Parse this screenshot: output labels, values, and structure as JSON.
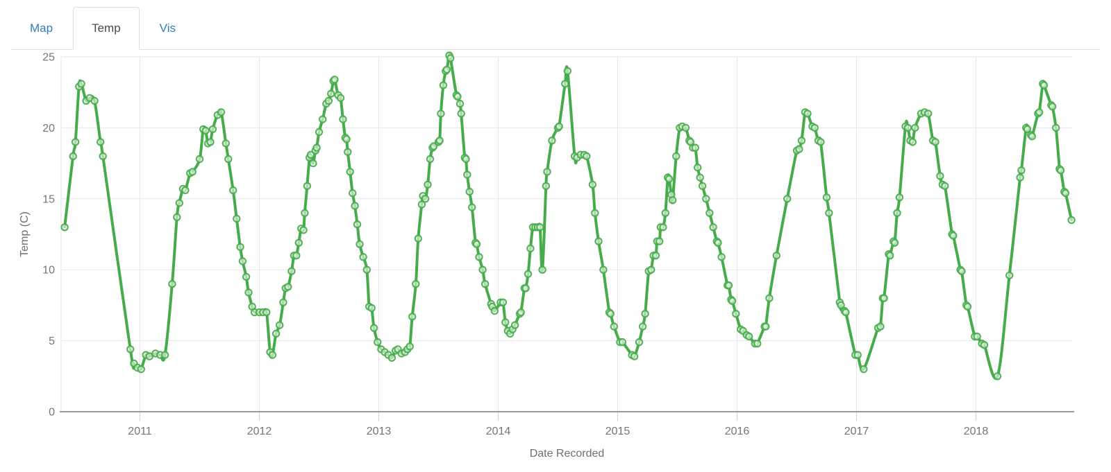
{
  "tabs": {
    "items": [
      {
        "label": "Map",
        "active": false
      },
      {
        "label": "Temp",
        "active": true
      },
      {
        "label": "Vis",
        "active": false
      }
    ]
  },
  "colors": {
    "line": "#45ac49",
    "marker_fill": "rgba(255,255,255,0.55)",
    "link": "#337ab7",
    "active_tab_text": "#4a4a4a",
    "tab_border": "#dddddd",
    "grid": "#e6e6e6",
    "axis": "#999999",
    "tick": "#cfcfcf",
    "tick_label": "#757575",
    "axis_title": "#6e6e6e"
  },
  "chart_data": {
    "type": "line",
    "title": "",
    "xlabel": "Date Recorded",
    "ylabel": "Temp (C)",
    "x_ticks": [
      2011,
      2012,
      2013,
      2014,
      2015,
      2016,
      2017,
      2018
    ],
    "y_ticks": [
      0,
      5,
      10,
      15,
      20,
      25
    ],
    "x_range": [
      2010.34,
      2018.81
    ],
    "ylim": [
      0,
      25
    ],
    "grid": true,
    "legend": false,
    "marker": "hollow-circle",
    "series": [
      {
        "name": "Temp",
        "color": "#45ac49",
        "points": [
          [
            2010.37,
            13
          ],
          [
            2010.44,
            18
          ],
          [
            2010.46,
            19
          ],
          [
            2010.49,
            22.9
          ],
          [
            2010.51,
            23.1
          ],
          [
            2010.55,
            21.9
          ],
          [
            2010.58,
            22.1
          ],
          [
            2010.62,
            21.9
          ],
          [
            2010.67,
            19
          ],
          [
            2010.69,
            18
          ],
          [
            2010.92,
            4.4
          ],
          [
            2010.95,
            3.4
          ],
          [
            2010.98,
            3.1
          ],
          [
            2011.01,
            3
          ],
          [
            2011.05,
            4
          ],
          [
            2011.08,
            3.9
          ],
          [
            2011.13,
            4.1
          ],
          [
            2011.17,
            4
          ],
          [
            2011.21,
            4
          ],
          [
            2011.27,
            9
          ],
          [
            2011.31,
            13.7
          ],
          [
            2011.33,
            14.7
          ],
          [
            2011.36,
            15.7
          ],
          [
            2011.38,
            15.6
          ],
          [
            2011.42,
            16.8
          ],
          [
            2011.44,
            16.9
          ],
          [
            2011.5,
            17.8
          ],
          [
            2011.53,
            19.9
          ],
          [
            2011.55,
            19.8
          ],
          [
            2011.57,
            18.9
          ],
          [
            2011.59,
            19
          ],
          [
            2011.61,
            19.9
          ],
          [
            2011.65,
            20.9
          ],
          [
            2011.68,
            21.1
          ],
          [
            2011.72,
            18.9
          ],
          [
            2011.74,
            17.8
          ],
          [
            2011.78,
            15.6
          ],
          [
            2011.81,
            13.6
          ],
          [
            2011.84,
            11.6
          ],
          [
            2011.86,
            10.6
          ],
          [
            2011.89,
            9.5
          ],
          [
            2011.91,
            8.4
          ],
          [
            2011.94,
            7.4
          ],
          [
            2011.96,
            7
          ],
          [
            2012,
            7
          ],
          [
            2012.03,
            7
          ],
          [
            2012.06,
            7
          ],
          [
            2012.09,
            4.2
          ],
          [
            2012.11,
            4
          ],
          [
            2012.14,
            5.5
          ],
          [
            2012.17,
            6.1
          ],
          [
            2012.2,
            7.7
          ],
          [
            2012.22,
            8.7
          ],
          [
            2012.24,
            8.8
          ],
          [
            2012.27,
            9.9
          ],
          [
            2012.29,
            11
          ],
          [
            2012.31,
            11
          ],
          [
            2012.33,
            11.9
          ],
          [
            2012.35,
            12.9
          ],
          [
            2012.37,
            12.8
          ],
          [
            2012.38,
            14
          ],
          [
            2012.4,
            15.9
          ],
          [
            2012.42,
            17.9
          ],
          [
            2012.43,
            18.1
          ],
          [
            2012.45,
            17.5
          ],
          [
            2012.47,
            18.4
          ],
          [
            2012.48,
            18.6
          ],
          [
            2012.5,
            19.7
          ],
          [
            2012.53,
            20.6
          ],
          [
            2012.56,
            21.7
          ],
          [
            2012.58,
            21.9
          ],
          [
            2012.6,
            22.4
          ],
          [
            2012.62,
            23.3
          ],
          [
            2012.63,
            23.4
          ],
          [
            2012.66,
            22.3
          ],
          [
            2012.68,
            22.1
          ],
          [
            2012.7,
            20.6
          ],
          [
            2012.72,
            19.3
          ],
          [
            2012.73,
            19.2
          ],
          [
            2012.74,
            18.3
          ],
          [
            2012.76,
            16.9
          ],
          [
            2012.78,
            15.4
          ],
          [
            2012.8,
            14.5
          ],
          [
            2012.82,
            13.2
          ],
          [
            2012.84,
            11.8
          ],
          [
            2012.87,
            10.9
          ],
          [
            2012.9,
            10
          ],
          [
            2012.92,
            7.4
          ],
          [
            2012.94,
            7.3
          ],
          [
            2012.96,
            5.9
          ],
          [
            2012.99,
            4.9
          ],
          [
            2013.02,
            4.4
          ],
          [
            2013.05,
            4.2
          ],
          [
            2013.08,
            4
          ],
          [
            2013.11,
            3.8
          ],
          [
            2013.14,
            4.3
          ],
          [
            2013.16,
            4.4
          ],
          [
            2013.19,
            4.1
          ],
          [
            2013.22,
            4.2
          ],
          [
            2013.24,
            4.4
          ],
          [
            2013.26,
            4.6
          ],
          [
            2013.28,
            6.7
          ],
          [
            2013.31,
            9
          ],
          [
            2013.33,
            12.2
          ],
          [
            2013.36,
            14.6
          ],
          [
            2013.37,
            15.2
          ],
          [
            2013.39,
            15
          ],
          [
            2013.41,
            16
          ],
          [
            2013.43,
            17.8
          ],
          [
            2013.45,
            18.6
          ],
          [
            2013.46,
            18.7
          ],
          [
            2013.5,
            19
          ],
          [
            2013.51,
            19.1
          ],
          [
            2013.52,
            21
          ],
          [
            2013.54,
            23
          ],
          [
            2013.56,
            24
          ],
          [
            2013.57,
            24.1
          ],
          [
            2013.59,
            25.1
          ],
          [
            2013.6,
            24.9
          ],
          [
            2013.65,
            22.3
          ],
          [
            2013.66,
            22.2
          ],
          [
            2013.68,
            21.7
          ],
          [
            2013.69,
            21
          ],
          [
            2013.72,
            17.9
          ],
          [
            2013.73,
            17.8
          ],
          [
            2013.74,
            16.7
          ],
          [
            2013.76,
            15.5
          ],
          [
            2013.78,
            14.4
          ],
          [
            2013.81,
            11.9
          ],
          [
            2013.82,
            11.8
          ],
          [
            2013.84,
            10.9
          ],
          [
            2013.87,
            10
          ],
          [
            2013.89,
            9
          ],
          [
            2013.94,
            7.6
          ],
          [
            2013.95,
            7.4
          ],
          [
            2013.97,
            7.1
          ],
          [
            2014.02,
            7.7
          ],
          [
            2014.04,
            7.7
          ],
          [
            2014.06,
            6.3
          ],
          [
            2014.08,
            5.7
          ],
          [
            2014.1,
            5.5
          ],
          [
            2014.12,
            5.8
          ],
          [
            2014.14,
            6.1
          ],
          [
            2014.18,
            6.9
          ],
          [
            2014.19,
            7
          ],
          [
            2014.22,
            8.7
          ],
          [
            2014.23,
            8.7
          ],
          [
            2014.25,
            9.7
          ],
          [
            2014.27,
            11.5
          ],
          [
            2014.29,
            13
          ],
          [
            2014.31,
            13
          ],
          [
            2014.33,
            13
          ],
          [
            2014.35,
            13
          ],
          [
            2014.37,
            10
          ],
          [
            2014.4,
            15.9
          ],
          [
            2014.41,
            16.9
          ],
          [
            2014.45,
            19.1
          ],
          [
            2014.5,
            20
          ],
          [
            2014.51,
            20.1
          ],
          [
            2014.56,
            23.1
          ],
          [
            2014.58,
            24
          ],
          [
            2014.64,
            18
          ],
          [
            2014.66,
            17.9
          ],
          [
            2014.69,
            18.1
          ],
          [
            2014.72,
            18.1
          ],
          [
            2014.74,
            18
          ],
          [
            2014.79,
            16
          ],
          [
            2014.81,
            14
          ],
          [
            2014.84,
            12
          ],
          [
            2014.88,
            10
          ],
          [
            2014.93,
            7
          ],
          [
            2014.94,
            6.9
          ],
          [
            2014.97,
            6
          ],
          [
            2015.02,
            4.9
          ],
          [
            2015.04,
            4.9
          ],
          [
            2015.12,
            4
          ],
          [
            2015.14,
            3.9
          ],
          [
            2015.18,
            4.9
          ],
          [
            2015.21,
            6
          ],
          [
            2015.23,
            6.9
          ],
          [
            2015.26,
            9.9
          ],
          [
            2015.28,
            10
          ],
          [
            2015.3,
            11
          ],
          [
            2015.32,
            11
          ],
          [
            2015.33,
            12
          ],
          [
            2015.35,
            12
          ],
          [
            2015.36,
            13
          ],
          [
            2015.38,
            13
          ],
          [
            2015.4,
            14
          ],
          [
            2015.42,
            16.5
          ],
          [
            2015.43,
            16.4
          ],
          [
            2015.45,
            15.3
          ],
          [
            2015.46,
            14.9
          ],
          [
            2015.49,
            18
          ],
          [
            2015.52,
            20
          ],
          [
            2015.54,
            20.1
          ],
          [
            2015.57,
            20
          ],
          [
            2015.6,
            19.1
          ],
          [
            2015.61,
            19
          ],
          [
            2015.63,
            18.6
          ],
          [
            2015.65,
            18.6
          ],
          [
            2015.67,
            17.2
          ],
          [
            2015.69,
            16.5
          ],
          [
            2015.71,
            15.9
          ],
          [
            2015.74,
            15
          ],
          [
            2015.77,
            14
          ],
          [
            2015.8,
            13
          ],
          [
            2015.83,
            12
          ],
          [
            2015.84,
            11.9
          ],
          [
            2015.87,
            10.9
          ],
          [
            2015.92,
            8.9
          ],
          [
            2015.93,
            8.9
          ],
          [
            2015.95,
            7.9
          ],
          [
            2015.96,
            7.8
          ],
          [
            2015.99,
            6.9
          ],
          [
            2016.03,
            5.8
          ],
          [
            2016.05,
            5.7
          ],
          [
            2016.08,
            5.4
          ],
          [
            2016.1,
            5.3
          ],
          [
            2016.15,
            4.8
          ],
          [
            2016.17,
            4.8
          ],
          [
            2016.23,
            6
          ],
          [
            2016.24,
            6
          ],
          [
            2016.27,
            8
          ],
          [
            2016.33,
            11
          ],
          [
            2016.42,
            15
          ],
          [
            2016.5,
            18.4
          ],
          [
            2016.52,
            18.5
          ],
          [
            2016.54,
            19.1
          ],
          [
            2016.57,
            21.1
          ],
          [
            2016.59,
            21
          ],
          [
            2016.63,
            20.1
          ],
          [
            2016.65,
            20
          ],
          [
            2016.68,
            19.1
          ],
          [
            2016.7,
            19
          ],
          [
            2016.75,
            15.1
          ],
          [
            2016.77,
            14
          ],
          [
            2016.86,
            7.7
          ],
          [
            2016.87,
            7.5
          ],
          [
            2016.9,
            7.1
          ],
          [
            2016.91,
            7
          ],
          [
            2016.99,
            4
          ],
          [
            2017.01,
            4
          ],
          [
            2017.06,
            3
          ],
          [
            2017.18,
            5.9
          ],
          [
            2017.2,
            6
          ],
          [
            2017.22,
            8
          ],
          [
            2017.23,
            8
          ],
          [
            2017.27,
            11.1
          ],
          [
            2017.28,
            11
          ],
          [
            2017.31,
            12
          ],
          [
            2017.32,
            11.9
          ],
          [
            2017.34,
            14
          ],
          [
            2017.36,
            15.1
          ],
          [
            2017.41,
            20.1
          ],
          [
            2017.43,
            20
          ],
          [
            2017.45,
            19.1
          ],
          [
            2017.47,
            19
          ],
          [
            2017.49,
            20
          ],
          [
            2017.54,
            21
          ],
          [
            2017.57,
            21.1
          ],
          [
            2017.6,
            21
          ],
          [
            2017.64,
            19.1
          ],
          [
            2017.66,
            19
          ],
          [
            2017.7,
            16.6
          ],
          [
            2017.72,
            16
          ],
          [
            2017.74,
            15.9
          ],
          [
            2017.8,
            12.5
          ],
          [
            2017.81,
            12.4
          ],
          [
            2017.87,
            10
          ],
          [
            2017.88,
            9.9
          ],
          [
            2017.92,
            7.5
          ],
          [
            2017.93,
            7.4
          ],
          [
            2017.99,
            5.3
          ],
          [
            2018.01,
            5.3
          ],
          [
            2018.05,
            4.8
          ],
          [
            2018.07,
            4.7
          ],
          [
            2018.18,
            2.5
          ],
          [
            2018.28,
            9.6
          ],
          [
            2018.37,
            16.5
          ],
          [
            2018.38,
            17
          ],
          [
            2018.42,
            20
          ],
          [
            2018.43,
            19.9
          ],
          [
            2018.46,
            19.5
          ],
          [
            2018.47,
            19.4
          ],
          [
            2018.52,
            21
          ],
          [
            2018.53,
            21.1
          ],
          [
            2018.56,
            23.1
          ],
          [
            2018.57,
            23
          ],
          [
            2018.63,
            21.6
          ],
          [
            2018.64,
            21.5
          ],
          [
            2018.67,
            20
          ],
          [
            2018.7,
            17.1
          ],
          [
            2018.71,
            17
          ],
          [
            2018.74,
            15.5
          ],
          [
            2018.75,
            15.4
          ],
          [
            2018.8,
            13.5
          ]
        ]
      }
    ]
  }
}
